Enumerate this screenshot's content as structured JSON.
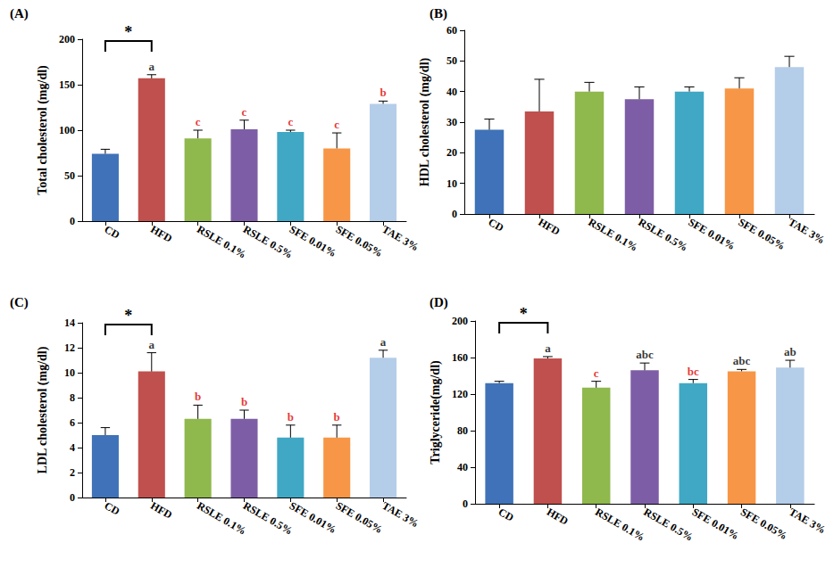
{
  "chart_data": [
    {
      "type": "bar",
      "title": "(A)",
      "ylabel": "Total cholesterol (mg/dl)",
      "categories": [
        "CD",
        "HFD",
        "RSLE 0.1%",
        "RSLE 0.5%",
        "SFE 0.01%",
        "SFE 0.05%",
        "TAE 3%"
      ],
      "values": [
        74,
        157,
        91,
        101,
        98,
        80,
        129
      ],
      "errors": [
        5,
        4,
        9,
        10,
        2,
        17,
        3
      ],
      "colors": [
        "#3f72b8",
        "#c0504d",
        "#8fb84d",
        "#7d5ea6",
        "#40a8c4",
        "#f79646",
        "#b4cde8"
      ],
      "ylim": [
        0,
        200
      ],
      "yticks": [
        0,
        50,
        100,
        150,
        200
      ],
      "grid": false,
      "letters": [
        {
          "category": "HFD",
          "text": "a",
          "color": "#000000"
        },
        {
          "category": "RSLE 0.1%",
          "text": "c",
          "color": "#e00000"
        },
        {
          "category": "RSLE 0.5%",
          "text": "c",
          "color": "#e00000"
        },
        {
          "category": "SFE 0.01%",
          "text": "c",
          "color": "#e00000"
        },
        {
          "category": "SFE 0.05%",
          "text": "c",
          "color": "#e00000"
        },
        {
          "category": "TAE 3%",
          "text": "b",
          "color": "#e00000"
        }
      ],
      "significance": {
        "from": "CD",
        "to": "HFD",
        "text": "*"
      }
    },
    {
      "type": "bar",
      "title": "(B)",
      "ylabel": "HDL cholesterol (mg/dl)",
      "categories": [
        "CD",
        "HFD",
        "RSLE 0.1%",
        "RSLE 0.5%",
        "SFE 0.01%",
        "SFE 0.05%",
        "TAE 3%"
      ],
      "values": [
        27.5,
        33.5,
        40,
        37.5,
        40,
        41,
        48
      ],
      "errors": [
        3.5,
        10.5,
        3,
        4,
        1.5,
        3.5,
        3.5
      ],
      "colors": [
        "#3f72b8",
        "#c0504d",
        "#8fb84d",
        "#7d5ea6",
        "#40a8c4",
        "#f79646",
        "#b4cde8"
      ],
      "ylim": [
        0,
        60
      ],
      "yticks": [
        0,
        10,
        20,
        30,
        40,
        50,
        60
      ],
      "grid": false
    },
    {
      "type": "bar",
      "title": "(C)",
      "ylabel": "LDL cholesterol (mg/dl)",
      "categories": [
        "CD",
        "HFD",
        "RSLE 0.1%",
        "RSLE 0.5%",
        "SFE 0.01%",
        "SFE 0.05%",
        "TAE 3%"
      ],
      "values": [
        5.0,
        10.1,
        6.3,
        6.3,
        4.8,
        4.8,
        11.2
      ],
      "errors": [
        0.6,
        1.5,
        1.1,
        0.7,
        1.0,
        1.0,
        0.6
      ],
      "colors": [
        "#3f72b8",
        "#c0504d",
        "#8fb84d",
        "#7d5ea6",
        "#40a8c4",
        "#f79646",
        "#b4cde8"
      ],
      "ylim": [
        0,
        14
      ],
      "yticks": [
        0,
        2,
        4,
        6,
        8,
        10,
        12,
        14
      ],
      "grid": false,
      "letters": [
        {
          "category": "HFD",
          "text": "a",
          "color": "#000000"
        },
        {
          "category": "RSLE 0.1%",
          "text": "b",
          "color": "#e00000"
        },
        {
          "category": "RSLE 0.5%",
          "text": "b",
          "color": "#e00000"
        },
        {
          "category": "SFE 0.01%",
          "text": "b",
          "color": "#e00000"
        },
        {
          "category": "SFE 0.05%",
          "text": "b",
          "color": "#e00000"
        },
        {
          "category": "TAE 3%",
          "text": "a",
          "color": "#000000"
        }
      ],
      "significance": {
        "from": "CD",
        "to": "HFD",
        "text": "*"
      }
    },
    {
      "type": "bar",
      "title": "(D)",
      "ylabel": "Triglyceride(mg/dl)",
      "categories": [
        "CD",
        "HFD",
        "RSLE 0.1%",
        "RSLE 0.5%",
        "SFE 0.01%",
        "SFE 0.05%",
        "TAE 3%"
      ],
      "values": [
        132,
        159,
        127,
        146,
        132,
        145,
        149
      ],
      "errors": [
        2,
        2,
        7,
        8,
        4,
        2,
        8
      ],
      "colors": [
        "#3f72b8",
        "#c0504d",
        "#8fb84d",
        "#7d5ea6",
        "#40a8c4",
        "#f79646",
        "#b4cde8"
      ],
      "ylim": [
        0,
        200
      ],
      "yticks": [
        0,
        40,
        80,
        120,
        160,
        200
      ],
      "grid": false,
      "letters": [
        {
          "category": "HFD",
          "text": "a",
          "color": "#000000"
        },
        {
          "category": "RSLE 0.1%",
          "text": "c",
          "color": "#e00000"
        },
        {
          "category": "RSLE 0.5%",
          "text": "abc",
          "color": "#000000"
        },
        {
          "category": "SFE 0.01%",
          "text": "bc",
          "color": "#e00000"
        },
        {
          "category": "SFE 0.05%",
          "text": "abc",
          "color": "#000000"
        },
        {
          "category": "TAE 3%",
          "text": "ab",
          "color": "#000000"
        }
      ],
      "significance": {
        "from": "CD",
        "to": "HFD",
        "text": "*"
      }
    }
  ]
}
